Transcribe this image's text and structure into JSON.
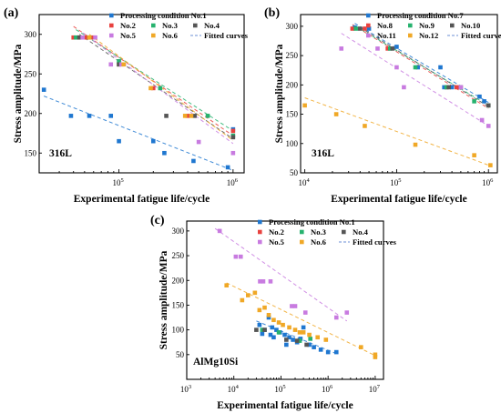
{
  "chart_data": [
    {
      "type": "scatter",
      "panel_label": "(a)",
      "material": "316L",
      "xlabel": "Experimental fatigue life/cycle",
      "ylabel": "Stress amplitude/MPa",
      "xscale": "log",
      "xlim": [
        20000,
        1250000
      ],
      "ylim": [
        125,
        325
      ],
      "xticks": [
        {
          "v": 100000,
          "b": "10",
          "e": "5"
        },
        {
          "v": 1000000,
          "b": "10",
          "e": "6"
        }
      ],
      "yticks": [
        150,
        200,
        250,
        300
      ],
      "legend_position": "top-right",
      "legend": [
        [
          {
            "label": "Processing condition No.1",
            "color": "#1f77d0",
            "kind": "marker"
          }
        ],
        [
          {
            "label": "No.2",
            "color": "#e8423f",
            "kind": "marker"
          },
          {
            "label": "No.3",
            "color": "#26b26e",
            "kind": "marker"
          },
          {
            "label": "No.4",
            "color": "#555555",
            "kind": "marker"
          }
        ],
        [
          {
            "label": "No.5",
            "color": "#c87be0",
            "kind": "marker"
          },
          {
            "label": "No.6",
            "color": "#f0a826",
            "kind": "marker"
          },
          {
            "label": "Fitted curves",
            "color": "#6b8fd6",
            "kind": "line"
          }
        ]
      ],
      "series": [
        {
          "name": "No.1",
          "color": "#1f77d0",
          "x": [
            22000,
            38000,
            55000,
            85000,
            100000,
            200000,
            250000,
            450000,
            900000,
            1000000
          ],
          "y": [
            230,
            197,
            197,
            197,
            165,
            165,
            150,
            140,
            132,
            180
          ]
        },
        {
          "name": "No.2",
          "color": "#e8423f",
          "x": [
            40000,
            45000,
            52000,
            60000,
            100000,
            200000,
            400000,
            1000000
          ],
          "y": [
            296,
            296,
            296,
            296,
            262,
            232,
            197,
            178
          ]
        },
        {
          "name": "No.3",
          "color": "#26b26e",
          "x": [
            42000,
            55000,
            100000,
            230000,
            600000,
            1000000
          ],
          "y": [
            296,
            296,
            266,
            232,
            197,
            172
          ]
        },
        {
          "name": "No.4",
          "color": "#555555",
          "x": [
            45000,
            100000,
            260000,
            460000,
            1000000
          ],
          "y": [
            296,
            262,
            197,
            197,
            170
          ]
        },
        {
          "name": "No.5",
          "color": "#c87be0",
          "x": [
            48000,
            62000,
            85000,
            105000,
            500000,
            1000000
          ],
          "y": [
            296,
            296,
            262,
            262,
            164,
            150
          ]
        },
        {
          "name": "No.6",
          "color": "#f0a826",
          "x": [
            55000,
            110000,
            190000,
            380000,
            430000
          ],
          "y": [
            296,
            262,
            232,
            197,
            197
          ]
        }
      ],
      "fits": [
        {
          "color": "#1f77d0",
          "x": [
            22000,
            1000000
          ],
          "y": [
            222,
            128
          ]
        },
        {
          "color": "#e8423f",
          "x": [
            40000,
            1000000
          ],
          "y": [
            310,
            172
          ]
        },
        {
          "color": "#26b26e",
          "x": [
            42000,
            1000000
          ],
          "y": [
            306,
            178
          ]
        },
        {
          "color": "#555555",
          "x": [
            45000,
            1000000
          ],
          "y": [
            300,
            168
          ]
        },
        {
          "color": "#c87be0",
          "x": [
            48000,
            1000000
          ],
          "y": [
            302,
            162
          ]
        },
        {
          "color": "#f0a826",
          "x": [
            55000,
            1000000
          ],
          "y": [
            300,
            166
          ]
        }
      ]
    },
    {
      "type": "scatter",
      "panel_label": "(b)",
      "material": "316L",
      "xlabel": "Experimental fatigue life/cycle",
      "ylabel": "Stress amplitude/MPa",
      "xscale": "log",
      "xlim": [
        9000,
        1250000
      ],
      "ylim": [
        50,
        320
      ],
      "xticks": [
        {
          "v": 10000,
          "b": "10",
          "e": "4"
        },
        {
          "v": 100000,
          "b": "10",
          "e": "5"
        },
        {
          "v": 1000000,
          "b": "10",
          "e": "6"
        }
      ],
      "yticks": [
        50,
        100,
        150,
        200,
        250,
        300
      ],
      "legend_position": "top-right",
      "legend": [
        [
          {
            "label": "Processing condition No.7",
            "color": "#1f77d0",
            "kind": "marker"
          }
        ],
        [
          {
            "label": "No.8",
            "color": "#e8423f",
            "kind": "marker"
          },
          {
            "label": "No.9",
            "color": "#26b26e",
            "kind": "marker"
          },
          {
            "label": "No.10",
            "color": "#555555",
            "kind": "marker"
          }
        ],
        [
          {
            "label": "No.11",
            "color": "#c87be0",
            "kind": "marker"
          },
          {
            "label": "No.12",
            "color": "#f0a826",
            "kind": "marker"
          },
          {
            "label": "Fitted curves",
            "color": "#6b8fd6",
            "kind": "line"
          }
        ]
      ],
      "series": [
        {
          "name": "No.7",
          "color": "#1f77d0",
          "x": [
            35000,
            50000,
            100000,
            170000,
            300000,
            330000,
            400000,
            800000,
            900000
          ],
          "y": [
            298,
            296,
            265,
            230,
            230,
            196,
            196,
            180,
            172
          ]
        },
        {
          "name": "No.8",
          "color": "#e8423f",
          "x": [
            33000,
            45000,
            80000,
            350000,
            450000
          ],
          "y": [
            296,
            296,
            262,
            196,
            196
          ]
        },
        {
          "name": "No.9",
          "color": "#26b26e",
          "x": [
            36000,
            85000,
            160000,
            350000,
            700000,
            1000000
          ],
          "y": [
            296,
            262,
            230,
            196,
            172,
            165
          ]
        },
        {
          "name": "No.10",
          "color": "#555555",
          "x": [
            40000,
            90000,
            370000,
            500000,
            1000000
          ],
          "y": [
            296,
            262,
            196,
            196,
            165
          ]
        },
        {
          "name": "No.11",
          "color": "#c87be0",
          "x": [
            25000,
            62000,
            100000,
            120000,
            500000,
            850000,
            1000000
          ],
          "y": [
            262,
            262,
            230,
            196,
            196,
            140,
            130
          ]
        },
        {
          "name": "No.12",
          "color": "#f0a826",
          "x": [
            10000,
            22000,
            45000,
            160000,
            700000,
            1050000
          ],
          "y": [
            165,
            150,
            130,
            98,
            80,
            63
          ]
        }
      ],
      "fits": [
        {
          "color": "#1f77d0",
          "x": [
            35000,
            1000000
          ],
          "y": [
            305,
            170
          ]
        },
        {
          "color": "#e8423f",
          "x": [
            33000,
            1000000
          ],
          "y": [
            303,
            160
          ]
        },
        {
          "color": "#26b26e",
          "x": [
            36000,
            1000000
          ],
          "y": [
            300,
            165
          ]
        },
        {
          "color": "#555555",
          "x": [
            40000,
            1000000
          ],
          "y": [
            298,
            163
          ]
        },
        {
          "color": "#c87be0",
          "x": [
            25000,
            1000000
          ],
          "y": [
            288,
            130
          ]
        },
        {
          "color": "#f0a826",
          "x": [
            10000,
            1050000
          ],
          "y": [
            178,
            62
          ]
        }
      ]
    },
    {
      "type": "scatter",
      "panel_label": "(c)",
      "material": "AlMg10Si",
      "xlabel": "Experimental fatigue life/cycle",
      "ylabel": "Stress amplitude/MPa",
      "xscale": "log",
      "xlim": [
        1000,
        15000000
      ],
      "ylim": [
        0,
        320
      ],
      "xticks": [
        {
          "v": 1000,
          "b": "10",
          "e": "3"
        },
        {
          "v": 10000,
          "b": "10",
          "e": "4"
        },
        {
          "v": 100000,
          "b": "10",
          "e": "5"
        },
        {
          "v": 1000000,
          "b": "10",
          "e": "6"
        },
        {
          "v": 10000000,
          "b": "10",
          "e": "7"
        }
      ],
      "yticks": [
        50,
        100,
        150,
        200,
        250,
        300
      ],
      "legend_position": "top-right",
      "legend": [
        [
          {
            "label": "Processing condition No.1",
            "color": "#1f77d0",
            "kind": "marker"
          }
        ],
        [
          {
            "label": "No.2",
            "color": "#e8423f",
            "kind": "marker"
          },
          {
            "label": "No.3",
            "color": "#26b26e",
            "kind": "marker"
          },
          {
            "label": "No.4",
            "color": "#555555",
            "kind": "marker"
          }
        ],
        [
          {
            "label": "No.5",
            "color": "#c87be0",
            "kind": "marker"
          },
          {
            "label": "No.6",
            "color": "#f0a826",
            "kind": "marker"
          },
          {
            "label": "Fitted curves",
            "color": "#6b8fd6",
            "kind": "line"
          }
        ]
      ],
      "series": [
        {
          "name": "No.1",
          "color": "#1f77d0",
          "x": [
            35000,
            45000,
            55000,
            60000,
            70000,
            80000,
            95000,
            120000,
            150000,
            180000,
            220000,
            260000,
            300000,
            400000,
            500000,
            700000,
            1000000,
            1500000,
            40000,
            65000,
            130000
          ],
          "y": [
            110,
            100,
            125,
            90,
            85,
            100,
            95,
            90,
            85,
            80,
            75,
            82,
            105,
            70,
            65,
            60,
            55,
            55,
            92,
            105,
            70
          ]
        },
        {
          "name": "No.3",
          "color": "#26b26e",
          "x": [
            40000,
            90000,
            250000,
            420000
          ],
          "y": [
            100,
            95,
            78,
            82
          ]
        },
        {
          "name": "No.4",
          "color": "#555555",
          "x": [
            30000,
            45000,
            130000,
            220000,
            350000
          ],
          "y": [
            100,
            100,
            80,
            78,
            70
          ]
        },
        {
          "name": "No.5",
          "color": "#c87be0",
          "x": [
            5000,
            11000,
            14000,
            36000,
            42000,
            60000,
            170000,
            200000,
            330000,
            1500000,
            2500000
          ],
          "y": [
            300,
            248,
            248,
            198,
            198,
            198,
            148,
            148,
            135,
            125,
            135
          ]
        },
        {
          "name": "No.6",
          "color": "#f0a826",
          "x": [
            7000,
            15000,
            20000,
            28000,
            35000,
            45000,
            55000,
            70000,
            90000,
            110000,
            150000,
            200000,
            250000,
            300000,
            400000,
            600000,
            900000,
            5000000,
            10000000,
            10000000
          ],
          "y": [
            190,
            160,
            170,
            175,
            140,
            145,
            130,
            120,
            115,
            110,
            105,
            100,
            95,
            95,
            90,
            85,
            80,
            65,
            50,
            45
          ]
        }
      ],
      "fits": [
        {
          "color": "#c87be0",
          "x": [
            4000,
            2500000
          ],
          "y": [
            305,
            118
          ]
        },
        {
          "color": "#f0a826",
          "x": [
            7000,
            10000000
          ],
          "y": [
            195,
            48
          ]
        },
        {
          "color": "#1f77d0",
          "x": [
            30000,
            1500000
          ],
          "y": [
            118,
            52
          ]
        }
      ]
    }
  ]
}
